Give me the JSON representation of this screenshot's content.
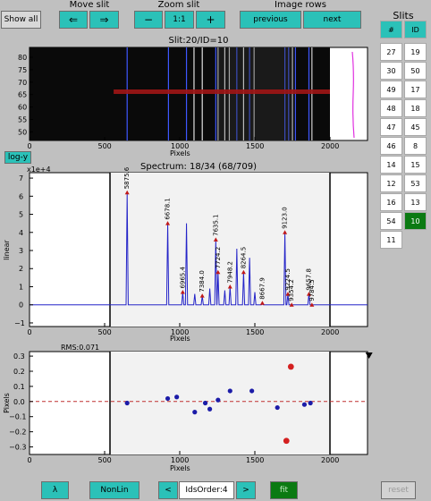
{
  "toolbar": {
    "show_all": "Show all",
    "move_slit_title": "Move slit",
    "move_left": "⇐",
    "move_right": "⇒",
    "zoom_slit_title": "Zoom slit",
    "zoom_out": "−",
    "zoom_reset": "1:1",
    "zoom_in": "+",
    "image_rows_title": "Image rows",
    "previous": "previous",
    "next": "next"
  },
  "slit_image": {
    "title": "Slit:20/ID=10",
    "xlabel": "Pixels",
    "yticks": [
      "80",
      "75",
      "70",
      "65",
      "60",
      "55",
      "50"
    ],
    "xticks": [
      "0",
      "500",
      "1000",
      "1500",
      "2000"
    ]
  },
  "log_button": "log-y",
  "spectrum": {
    "title": "Spectrum: 18/34 (68/709)",
    "scale": "x1e+4",
    "ylabel": "linear",
    "xlabel": "Pixels",
    "yticks": [
      "7",
      "6",
      "5",
      "4",
      "3",
      "2",
      "1",
      "0",
      "−1"
    ],
    "xticks": [
      "0",
      "500",
      "1000",
      "1500",
      "2000"
    ],
    "lines": [
      "5875.6",
      "6678.1",
      "6965.4",
      "7384.0",
      "7635.1",
      "7724.2",
      "7948.2",
      "8264.5",
      "8667.9",
      "9123.0",
      "9224.5",
      "9354.2",
      "9657.8",
      "9784.5"
    ]
  },
  "residuals": {
    "title": "RMS:0.071",
    "ylabel": "Pixels",
    "xlabel": "Pixels",
    "yticks": [
      "0.3",
      "0.2",
      "0.1",
      "0.0",
      "−0.1",
      "−0.2",
      "−0.3"
    ],
    "xticks": [
      "0",
      "500",
      "1000",
      "1500",
      "2000"
    ]
  },
  "slits": {
    "title": "Slits",
    "col_num": "#",
    "col_id": "ID",
    "rows": [
      [
        "27",
        "19"
      ],
      [
        "30",
        "50"
      ],
      [
        "49",
        "17"
      ],
      [
        "48",
        "18"
      ],
      [
        "47",
        "45"
      ],
      [
        "46",
        "8"
      ],
      [
        "14",
        "15"
      ],
      [
        "12",
        "53"
      ],
      [
        "16",
        "13"
      ],
      [
        "54",
        "10"
      ],
      [
        "11",
        ""
      ]
    ],
    "selected_row": 9
  },
  "bottom": {
    "lambda": "λ",
    "nonlin": "NonLin",
    "prev": "<",
    "order": "IdsOrder:4",
    "next": ">",
    "fit": "fit",
    "reset": "reset"
  },
  "chart_data": [
    {
      "type": "line",
      "title": "Spectrum: 18/34 (68/709)",
      "xlabel": "Pixels",
      "ylabel": "linear",
      "xlim": [
        0,
        2250
      ],
      "ylim": [
        -1.2,
        7.3
      ],
      "peaks": [
        {
          "x": 650,
          "y": 6.2,
          "label": "5875.6"
        },
        {
          "x": 920,
          "y": 4.5,
          "label": "6678.1"
        },
        {
          "x": 1020,
          "y": 0.7,
          "label": "6965.4"
        },
        {
          "x": 1045,
          "y": 4.5,
          "label": ""
        },
        {
          "x": 1100,
          "y": 0.6,
          "label": ""
        },
        {
          "x": 1150,
          "y": 0.5,
          "label": "7384.0"
        },
        {
          "x": 1200,
          "y": 0.9,
          "label": ""
        },
        {
          "x": 1240,
          "y": 3.6,
          "label": "7635.1"
        },
        {
          "x": 1255,
          "y": 1.8,
          "label": "7724.2"
        },
        {
          "x": 1300,
          "y": 0.8,
          "label": ""
        },
        {
          "x": 1335,
          "y": 1.0,
          "label": "7948.2"
        },
        {
          "x": 1380,
          "y": 3.1,
          "label": ""
        },
        {
          "x": 1425,
          "y": 1.8,
          "label": "8264.5"
        },
        {
          "x": 1465,
          "y": 2.6,
          "label": ""
        },
        {
          "x": 1500,
          "y": 0.7,
          "label": ""
        },
        {
          "x": 1550,
          "y": 0.1,
          "label": "8667.9"
        },
        {
          "x": 1700,
          "y": 4.0,
          "label": "9123.0"
        },
        {
          "x": 1720,
          "y": 0.6,
          "label": "9224.5"
        },
        {
          "x": 1745,
          "y": 0.0,
          "label": "9354.2"
        },
        {
          "x": 1860,
          "y": 0.6,
          "label": "9657.8"
        },
        {
          "x": 1880,
          "y": 0.0,
          "label": "9784.5"
        }
      ]
    },
    {
      "type": "scatter",
      "title": "RMS:0.071",
      "xlabel": "Pixels",
      "ylabel": "Pixels",
      "xlim": [
        0,
        2250
      ],
      "ylim": [
        -0.35,
        0.33
      ],
      "points": [
        [
          650,
          -0.01
        ],
        [
          920,
          0.02
        ],
        [
          980,
          0.03
        ],
        [
          1100,
          -0.07
        ],
        [
          1170,
          -0.01
        ],
        [
          1200,
          -0.05
        ],
        [
          1255,
          0.01
        ],
        [
          1335,
          0.07
        ],
        [
          1480,
          0.07
        ],
        [
          1650,
          -0.04
        ],
        [
          1830,
          -0.02
        ],
        [
          1870,
          -0.01
        ]
      ],
      "outliers": [
        [
          1740,
          0.23
        ],
        [
          1710,
          -0.26
        ]
      ],
      "marker_x": 2260
    }
  ]
}
